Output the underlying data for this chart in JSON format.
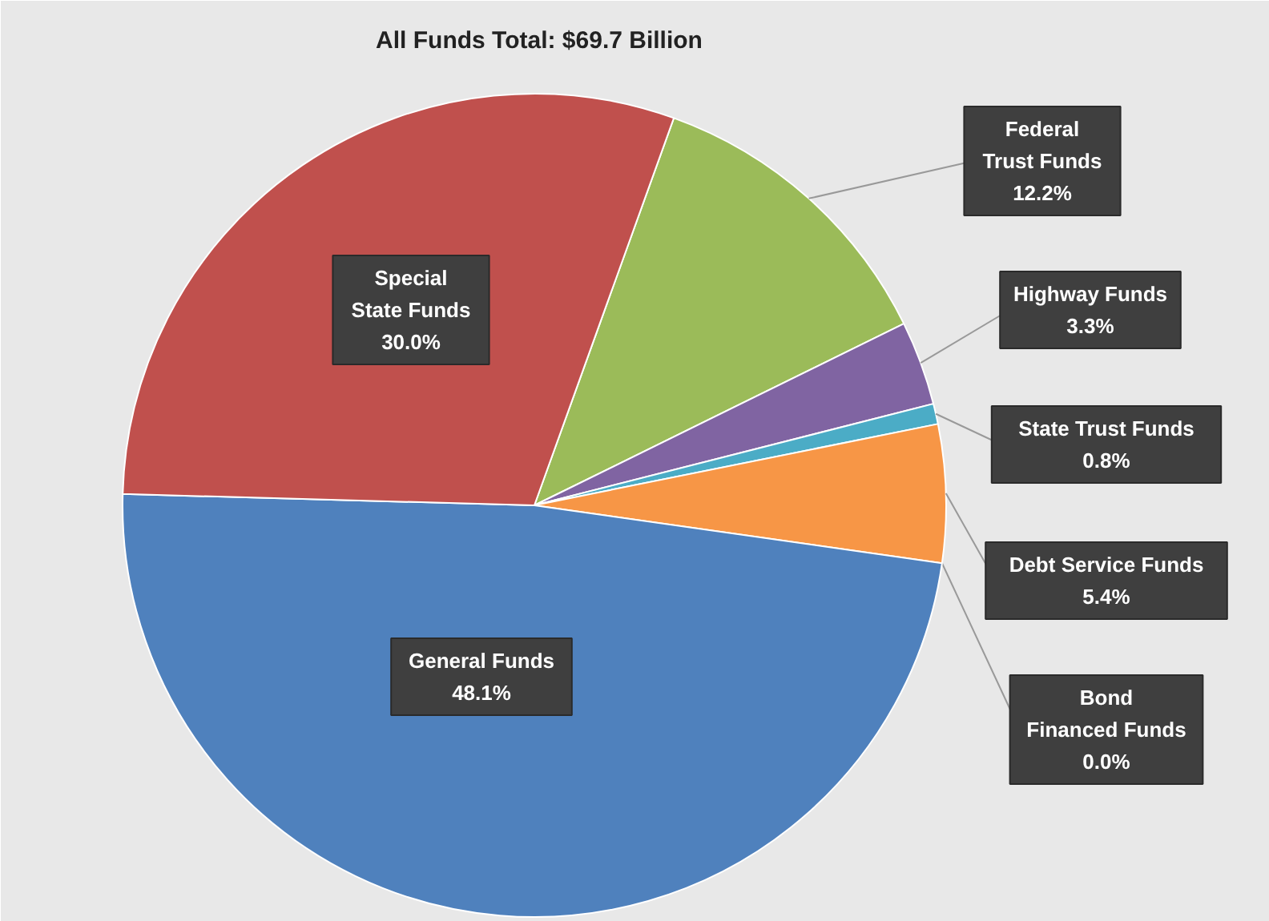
{
  "chart_data": {
    "type": "pie",
    "title": "All Funds Total: $69.7 Billion",
    "categories": [
      "Federal Trust Funds",
      "Highway Funds",
      "State Trust Funds",
      "Debt Service Funds",
      "Bond Financed Funds",
      "General Funds",
      "Special State Funds"
    ],
    "values": [
      12.2,
      3.3,
      0.8,
      5.4,
      0.0,
      48.1,
      30.0
    ],
    "colors": [
      "#9bbb59",
      "#8064a2",
      "#4bacc6",
      "#f79646",
      "#1f497d",
      "#4f81bd",
      "#c0504d"
    ],
    "value_labels": [
      "12.2%",
      "3.3%",
      "0.8%",
      "5.4%",
      "0.0%",
      "48.1%",
      "30.0%"
    ]
  }
}
